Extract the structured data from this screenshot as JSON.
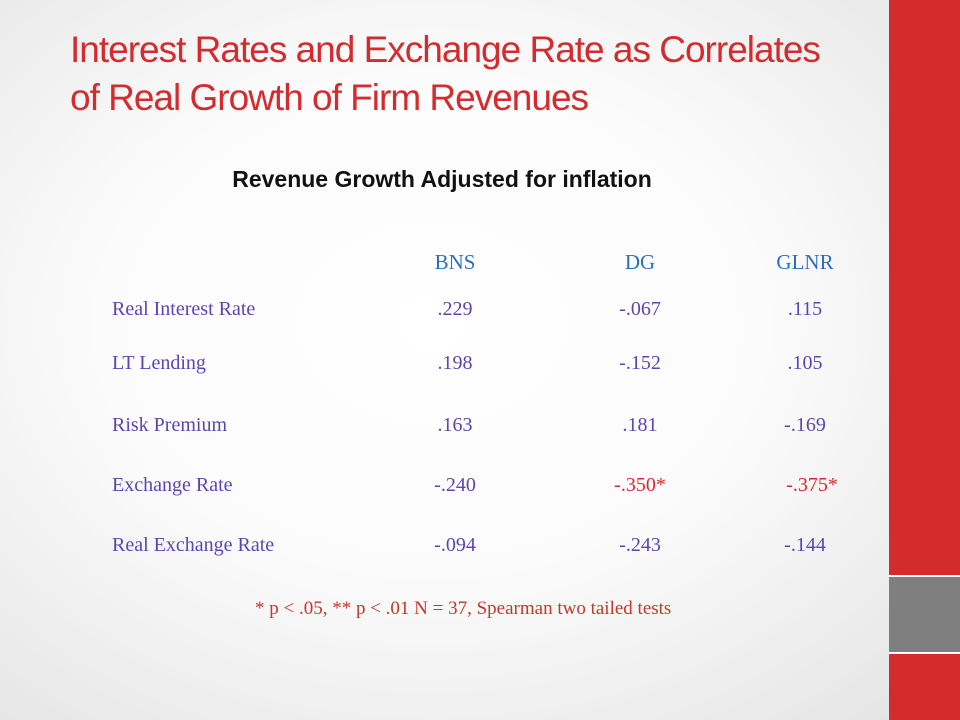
{
  "slide": {
    "title_line1": "Interest Rates and Exchange Rate as Correlates",
    "title_line2": "of Real Growth of Firm Revenues",
    "subtitle": "Revenue Growth Adjusted for inflation",
    "footnote": "* p < .05, ** p < .01  N = 37, Spearman two tailed tests"
  },
  "table": {
    "columns": [
      "BNS",
      "DG",
      "GLNR"
    ],
    "rows": [
      {
        "label": "Real Interest Rate",
        "values": [
          ".229",
          "-.067",
          ".115"
        ]
      },
      {
        "label": "LT Lending",
        "values": [
          ".198",
          "-.152",
          ".105"
        ]
      },
      {
        "label": "Risk Premium",
        "values": [
          ".163",
          ".181",
          "-.169"
        ]
      },
      {
        "label": "Exchange Rate",
        "values": [
          "-.240",
          "-.350*",
          "-.375*"
        ]
      },
      {
        "label": "Real Exchange Rate",
        "values": [
          "-.094",
          "-.243",
          "-.144"
        ]
      }
    ]
  },
  "colors": {
    "accent_red": "#d32b2e",
    "accent_grey": "#7f7f7f",
    "header_blue": "#2c6fbf",
    "cell_purple": "#5b45b0"
  }
}
